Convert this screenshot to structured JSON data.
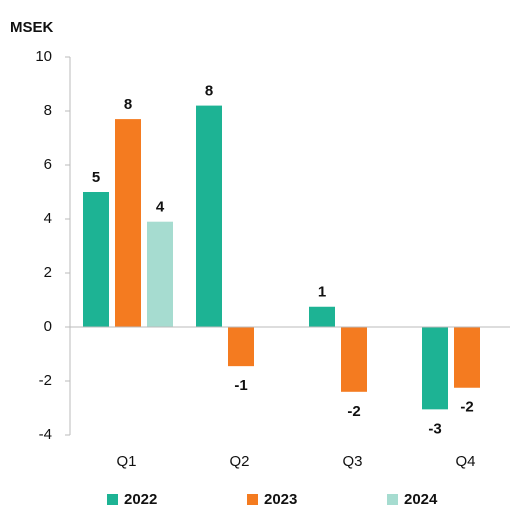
{
  "chart_data": {
    "type": "bar",
    "y_axis_label": "MSEK",
    "categories": [
      "Q1",
      "Q2",
      "Q3",
      "Q4"
    ],
    "series": [
      {
        "name": "2022",
        "color": "#1db394",
        "values": [
          5.0,
          8.2,
          0.75,
          -3.05
        ],
        "value_labels": [
          "5",
          "8",
          "1",
          "-3"
        ]
      },
      {
        "name": "2023",
        "color": "#f47b20",
        "values": [
          7.7,
          -1.45,
          -2.4,
          -2.25
        ],
        "value_labels": [
          "8",
          "-1",
          "-2",
          "-2"
        ]
      },
      {
        "name": "2024",
        "color": "#a6dcd0",
        "values": [
          3.9,
          null,
          null,
          null
        ],
        "value_labels": [
          "4",
          null,
          null,
          null
        ]
      }
    ],
    "ylim": [
      -4,
      10
    ],
    "yticks": [
      -4,
      -2,
      0,
      2,
      4,
      6,
      8,
      10
    ],
    "legend": "bottom"
  }
}
